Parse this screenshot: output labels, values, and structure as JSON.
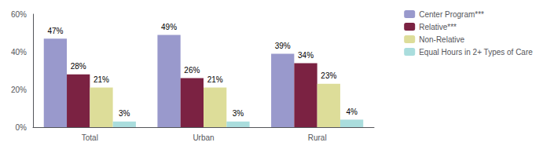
{
  "chart_data": {
    "type": "bar",
    "categories": [
      "Total",
      "Urban",
      "Rural"
    ],
    "series": [
      {
        "name": "Center Program***",
        "color": "#9999cc",
        "values": [
          47,
          49,
          39
        ],
        "value_labels": [
          "47%",
          "49%",
          "39%"
        ]
      },
      {
        "name": "Relative***",
        "color": "#7b2242",
        "values": [
          28,
          26,
          34
        ],
        "value_labels": [
          "28%",
          "26%",
          "34%"
        ]
      },
      {
        "name": "Non-Relative",
        "color": "#dddd99",
        "values": [
          21,
          21,
          23
        ],
        "value_labels": [
          "21%",
          "21%",
          "23%"
        ]
      },
      {
        "name": "Equal Hours in 2+ Types of Care",
        "color": "#aadddd",
        "values": [
          3,
          3,
          4
        ],
        "value_labels": [
          "3%",
          "3%",
          "4%"
        ]
      }
    ],
    "ylim": [
      0,
      60
    ],
    "yticks": [
      {
        "value": 0,
        "label": "0%"
      },
      {
        "value": 20,
        "label": "20%"
      },
      {
        "value": 40,
        "label": "40%"
      },
      {
        "value": 60,
        "label": "60%"
      }
    ],
    "grid": false,
    "legend": "upper right",
    "data_labels": true
  }
}
